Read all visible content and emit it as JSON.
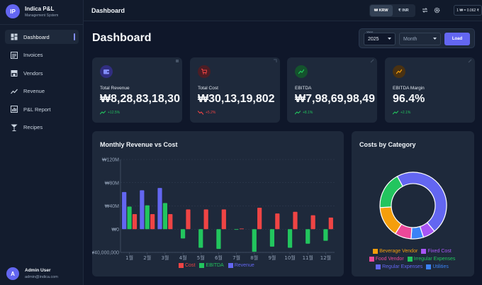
{
  "brand": {
    "initials": "IP",
    "name": "Indica P&L",
    "subtitle": "Management System"
  },
  "sidebar": {
    "items": [
      {
        "label": "Dashboard",
        "icon": "dashboard-icon",
        "active": true
      },
      {
        "label": "Invoices",
        "icon": "invoice-icon"
      },
      {
        "label": "Vendors",
        "icon": "store-icon"
      },
      {
        "label": "Revenue",
        "icon": "trend-icon"
      },
      {
        "label": "P&L Report",
        "icon": "report-icon"
      },
      {
        "label": "Recipes",
        "icon": "cocktail-icon"
      }
    ]
  },
  "user": {
    "initial": "A",
    "name": "Admin User",
    "email": "admin@indica.com"
  },
  "topbar": {
    "title": "Dashboard",
    "currency_krw": "₩ KRW",
    "currency_inr": "₹ INR",
    "rate": "1 ₩ = 0.062 ₹"
  },
  "page": {
    "title": "Dashboard"
  },
  "filter": {
    "year_label": "Year",
    "year_value": "2025",
    "month_placeholder": "Month",
    "load_label": "Load"
  },
  "kpis": [
    {
      "label": "Total Revenue",
      "value": "₩8,28,83,18,30",
      "change": "+12.5%",
      "direction": "up",
      "accent": "#6366f1",
      "icon": "wallet-icon"
    },
    {
      "label": "Total Cost",
      "value": "₩30,13,19,802",
      "change": "+5.2%",
      "direction": "down",
      "accent": "#ef4444",
      "icon": "cart-icon"
    },
    {
      "label": "EBITDA",
      "value": "₩7,98,69,98,49",
      "change": "+8.1%",
      "direction": "up",
      "accent": "#22c55e",
      "icon": "trend-up-icon"
    },
    {
      "label": "EBITDA Margin",
      "value": "96.4%",
      "change": "+2.1%",
      "direction": "up",
      "accent": "#f59e0b",
      "icon": "trend-up-icon"
    }
  ],
  "monthly_chart": {
    "title": "Monthly Revenue vs Cost"
  },
  "category_chart": {
    "title": "Costs by Category"
  },
  "colors": {
    "cost": "#ef4444",
    "ebitda": "#22c55e",
    "revenue": "#6366f1",
    "up": "#22c55e",
    "down": "#ef4444"
  },
  "chart_data": [
    {
      "type": "bar",
      "title": "Monthly Revenue vs Cost",
      "categories": [
        "1월",
        "2월",
        "3월",
        "4월",
        "5월",
        "6월",
        "7월",
        "8월",
        "9월",
        "10월",
        "11월",
        "12월"
      ],
      "yticks": [
        "₩120M",
        "₩80M",
        "₩40M",
        "₩0",
        "-₩40,000,000"
      ],
      "ylim": [
        -40000000,
        120000000
      ],
      "grid": true,
      "legend_position": "bottom",
      "series": [
        {
          "name": "Cost",
          "color": "#ef4444",
          "values": [
            26000000,
            26000000,
            26000000,
            34000000,
            34000000,
            34000000,
            1000000,
            37000000,
            27000000,
            30000000,
            24000000,
            20000000
          ]
        },
        {
          "name": "EBITDA",
          "color": "#22c55e",
          "values": [
            39000000,
            41000000,
            45000000,
            -16000000,
            -32000000,
            -34000000,
            -1000000,
            -39000000,
            -30000000,
            -32000000,
            -25000000,
            -20000000
          ]
        },
        {
          "name": "Revenue",
          "color": "#6366f1",
          "values": [
            64000000,
            67000000,
            71000000,
            0,
            0,
            0,
            0,
            0,
            0,
            0,
            0,
            0
          ]
        }
      ]
    },
    {
      "type": "pie",
      "title": "Costs by Category",
      "donut": true,
      "legend_position": "bottom",
      "categories": [
        "Beverage Vendor",
        "Fixed Cost",
        "Food Vendor",
        "Irregular Expenses",
        "Regular Expenses",
        "Utilities"
      ],
      "colors": [
        "#f59e0b",
        "#a855f7",
        "#ec4899",
        "#22c55e",
        "#6366f1",
        "#3b82f6"
      ],
      "values": [
        15,
        6,
        8,
        18,
        47,
        6
      ]
    }
  ]
}
